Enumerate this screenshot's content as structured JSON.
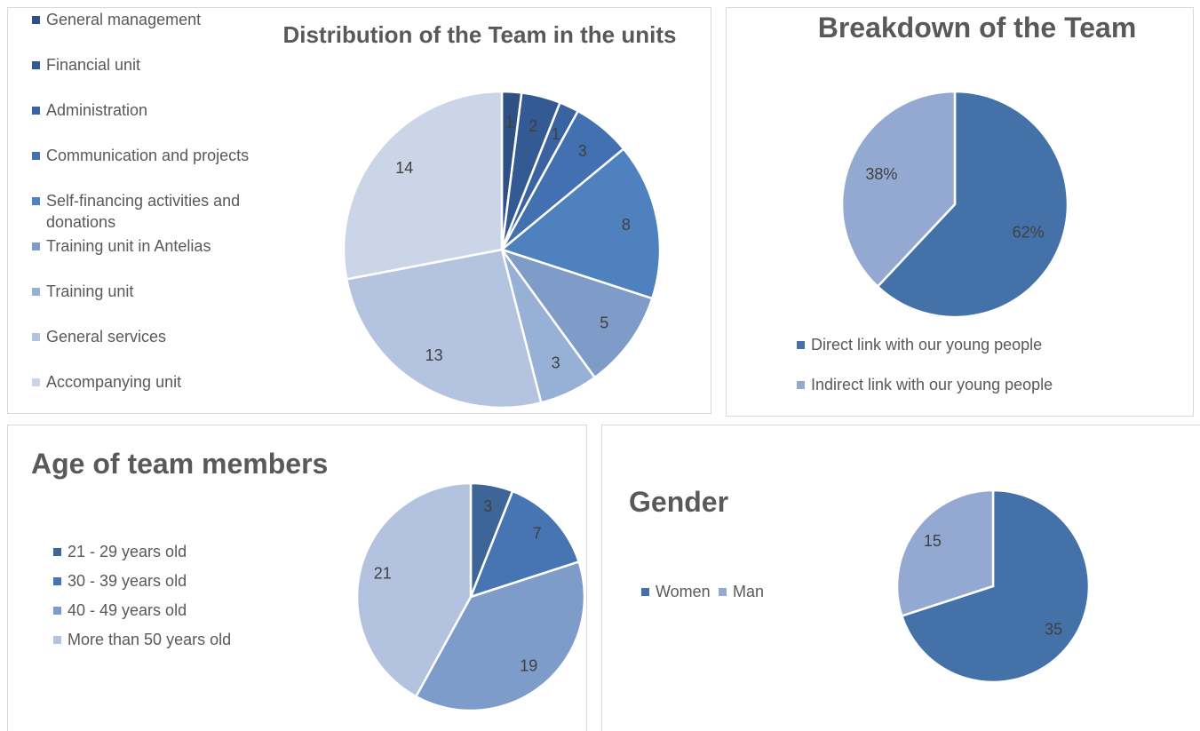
{
  "chart_data": [
    {
      "type": "pie",
      "title": "Distribution of the Team in the units",
      "categories": [
        "General management",
        "Financial unit",
        "Administration",
        "Communication and projects",
        "Self-financing activities and donations",
        "Training unit in Antelias",
        "Training unit",
        "General services",
        "Accompanying unit"
      ],
      "values": [
        1,
        2,
        1,
        3,
        8,
        5,
        3,
        13,
        14
      ],
      "colors": [
        "#2e5084",
        "#335a93",
        "#3a64a1",
        "#4270b0",
        "#4e81bd",
        "#7f9cc9",
        "#97b0d6",
        "#b4c4e0",
        "#cbd5e8"
      ],
      "legend": "left"
    },
    {
      "type": "pie",
      "title": "Breakdown of the Team",
      "categories": [
        "Direct link with our young people",
        "Indirect link with our young people"
      ],
      "values": [
        62,
        38
      ],
      "value_labels": [
        "62%",
        "38%"
      ],
      "colors": [
        "#4472a8",
        "#94a9d1"
      ],
      "legend": "bottom"
    },
    {
      "type": "pie",
      "title": "Age of team members",
      "categories": [
        "21 - 29 years old",
        "30 - 39 years old",
        "40 - 49 years old",
        "More than 50 years old"
      ],
      "values": [
        3,
        7,
        19,
        21
      ],
      "colors": [
        "#3e6598",
        "#4774b3",
        "#7e9cc9",
        "#b3c3df"
      ],
      "legend": "left"
    },
    {
      "type": "pie",
      "title": "Gender",
      "categories": [
        "Women",
        "Man"
      ],
      "values": [
        35,
        15
      ],
      "colors": [
        "#4472a8",
        "#94a9d1"
      ],
      "legend": "left"
    }
  ]
}
